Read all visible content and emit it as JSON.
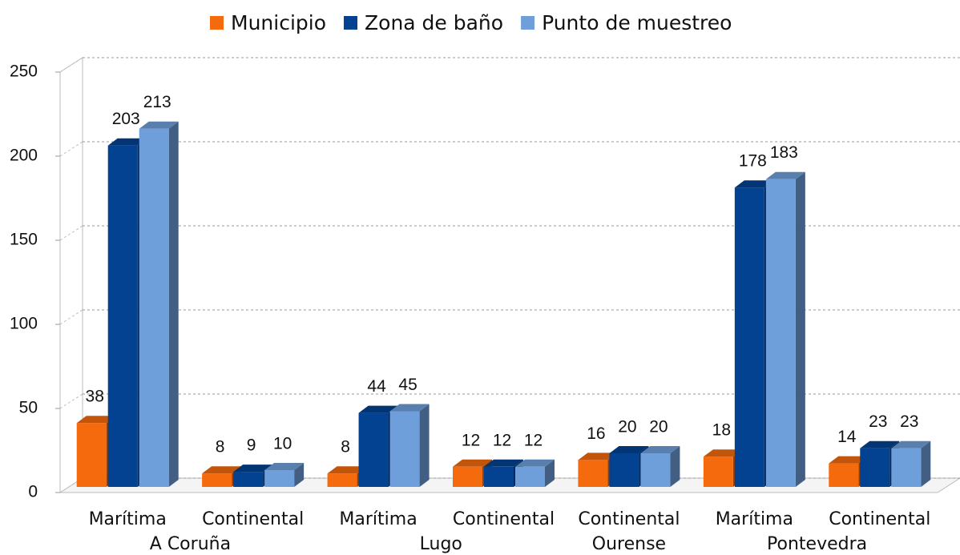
{
  "chart_data": {
    "type": "bar3d",
    "categories": [
      "Marítima",
      "Continental",
      "Marítima",
      "Continental",
      "Continental",
      "Marítima",
      "Continental"
    ],
    "groups": [
      {
        "label": "A Coruña",
        "count": 2
      },
      {
        "label": "Lugo",
        "count": 2
      },
      {
        "label": "Ourense",
        "count": 1
      },
      {
        "label": "Pontevedra",
        "count": 2
      }
    ],
    "series": [
      {
        "name": "Municipio",
        "color": "#f46a0c",
        "values": [
          38,
          8,
          8,
          12,
          16,
          18,
          14
        ]
      },
      {
        "name": "Zona de baño",
        "color": "#034291",
        "values": [
          203,
          9,
          44,
          12,
          20,
          178,
          23
        ]
      },
      {
        "name": "Punto de muestreo",
        "color": "#6e9fda",
        "values": [
          213,
          10,
          45,
          12,
          20,
          183,
          23
        ]
      }
    ],
    "ylim": [
      0,
      250
    ],
    "yticks": [
      0,
      50,
      100,
      150,
      200,
      250
    ],
    "grid": true,
    "legend": "top"
  }
}
